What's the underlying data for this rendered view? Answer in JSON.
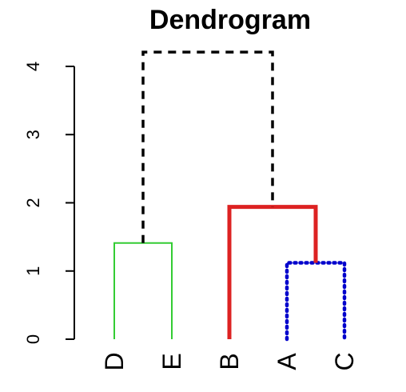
{
  "chart_data": {
    "type": "dendrogram",
    "title": "Dendrogram",
    "xlabel": "",
    "ylabel": "",
    "ylim": [
      0,
      4
    ],
    "y_ticks": [
      "0",
      "1",
      "2",
      "3",
      "4"
    ],
    "grid": false,
    "leaves": [
      "D",
      "E",
      "B",
      "A",
      "C"
    ],
    "merges": [
      {
        "id": "DE",
        "children": [
          "D",
          "E"
        ],
        "height": 1.41,
        "color": "#33cc33",
        "style": "solid"
      },
      {
        "id": "AC",
        "children": [
          "A",
          "C"
        ],
        "height": 1.12,
        "color": "#0000cc",
        "style": "dotted"
      },
      {
        "id": "BAC",
        "children": [
          "B",
          "AC"
        ],
        "height": 1.94,
        "color": "#dd2222",
        "style": "thick"
      },
      {
        "id": "root",
        "children": [
          "DE",
          "BAC"
        ],
        "height": 4.21,
        "color": "#000000",
        "style": "dashed"
      }
    ]
  }
}
